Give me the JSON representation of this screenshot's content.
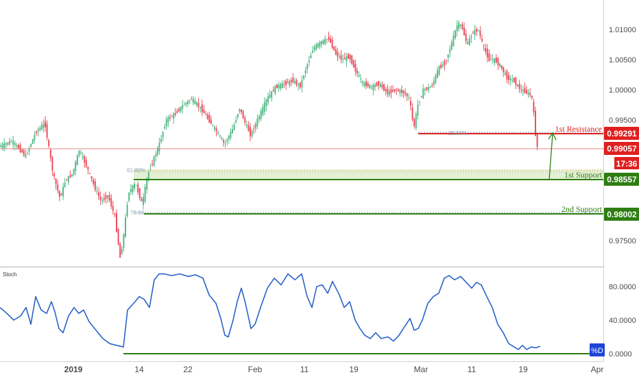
{
  "chart_data": [
    {
      "type": "candlestick",
      "ylim": [
        0.9715,
        1.0135
      ],
      "y_ticks": [
        "1.01000",
        "1.00500",
        "1.00000",
        "0.99500",
        "0.97500"
      ],
      "x_ticks": [
        "2019",
        "14",
        "22",
        "Feb",
        "11",
        "19",
        "Mar",
        "11",
        "19",
        "Apr"
      ],
      "price_path": [
        [
          0,
          0.9905
        ],
        [
          20,
          0.9915
        ],
        [
          40,
          0.989
        ],
        [
          55,
          0.993
        ],
        [
          68,
          0.9945
        ],
        [
          80,
          0.986
        ],
        [
          90,
          0.982
        ],
        [
          98,
          0.985
        ],
        [
          108,
          0.986
        ],
        [
          118,
          0.99
        ],
        [
          130,
          0.987
        ],
        [
          140,
          0.984
        ],
        [
          150,
          0.9815
        ],
        [
          160,
          0.9825
        ],
        [
          170,
          0.979
        ],
        [
          178,
          0.972
        ],
        [
          183,
          0.976
        ],
        [
          190,
          0.983
        ],
        [
          200,
          0.9845
        ],
        [
          210,
          0.981
        ],
        [
          218,
          0.986
        ],
        [
          225,
          0.988
        ],
        [
          235,
          0.991
        ],
        [
          245,
          0.995
        ],
        [
          258,
          0.996
        ],
        [
          270,
          0.9975
        ],
        [
          282,
          0.9985
        ],
        [
          295,
          0.997
        ],
        [
          310,
          0.9945
        ],
        [
          322,
          0.9925
        ],
        [
          330,
          0.991
        ],
        [
          342,
          0.9935
        ],
        [
          352,
          0.997
        ],
        [
          360,
          0.9945
        ],
        [
          368,
          0.9925
        ],
        [
          380,
          0.9955
        ],
        [
          392,
          0.9985
        ],
        [
          405,
          1.0005
        ],
        [
          418,
          1.001
        ],
        [
          430,
          1.0015
        ],
        [
          440,
          1.0005
        ],
        [
          450,
          1.004
        ],
        [
          460,
          1.007
        ],
        [
          472,
          1.008
        ],
        [
          482,
          1.0085
        ],
        [
          492,
          1.006
        ],
        [
          502,
          1.005
        ],
        [
          512,
          1.0055
        ],
        [
          522,
          1.003
        ],
        [
          532,
          1.001
        ],
        [
          545,
          1.0005
        ],
        [
          555,
          1.001
        ],
        [
          568,
          0.9995
        ],
        [
          580,
          1.0
        ],
        [
          592,
          0.9995
        ],
        [
          600,
          0.9985
        ],
        [
          606,
          0.9935
        ],
        [
          612,
          0.9975
        ],
        [
          620,
          1.0
        ],
        [
          632,
          1.0005
        ],
        [
          642,
          1.0035
        ],
        [
          652,
          1.0045
        ],
        [
          662,
          1.008
        ],
        [
          670,
          1.011
        ],
        [
          676,
          1.0105
        ],
        [
          684,
          1.0075
        ],
        [
          692,
          1.0095
        ],
        [
          700,
          1.01
        ],
        [
          708,
          1.007
        ],
        [
          716,
          1.005
        ],
        [
          724,
          1.005
        ],
        [
          732,
          1.004
        ],
        [
          742,
          1.002
        ],
        [
          752,
          1.0015
        ],
        [
          762,
          1.0
        ],
        [
          772,
          0.9995
        ],
        [
          778,
          0.999
        ],
        [
          782,
          0.995
        ],
        [
          785,
          0.9905
        ]
      ]
    },
    {
      "type": "line",
      "title": "Stoch",
      "ylim": [
        0,
        100
      ],
      "y_ticks": [
        "80.0000",
        "40.0000",
        "0.0000"
      ],
      "series": [
        {
          "name": "%D",
          "points": [
            [
              0,
              55
            ],
            [
              10,
              48
            ],
            [
              20,
              40
            ],
            [
              30,
              45
            ],
            [
              38,
              55
            ],
            [
              45,
              35
            ],
            [
              52,
              68
            ],
            [
              60,
              52
            ],
            [
              68,
              48
            ],
            [
              75,
              62
            ],
            [
              80,
              50
            ],
            [
              86,
              30
            ],
            [
              92,
              25
            ],
            [
              100,
              45
            ],
            [
              108,
              55
            ],
            [
              115,
              48
            ],
            [
              122,
              52
            ],
            [
              130,
              38
            ],
            [
              140,
              28
            ],
            [
              150,
              18
            ],
            [
              160,
              12
            ],
            [
              170,
              10
            ],
            [
              180,
              8
            ],
            [
              186,
              52
            ],
            [
              195,
              60
            ],
            [
              203,
              68
            ],
            [
              210,
              65
            ],
            [
              218,
              55
            ],
            [
              225,
              88
            ],
            [
              232,
              95
            ],
            [
              240,
              95
            ],
            [
              250,
              93
            ],
            [
              262,
              95
            ],
            [
              275,
              92
            ],
            [
              285,
              94
            ],
            [
              296,
              90
            ],
            [
              305,
              70
            ],
            [
              315,
              60
            ],
            [
              322,
              42
            ],
            [
              328,
              22
            ],
            [
              333,
              20
            ],
            [
              340,
              40
            ],
            [
              346,
              62
            ],
            [
              352,
              78
            ],
            [
              358,
              60
            ],
            [
              366,
              30
            ],
            [
              372,
              35
            ],
            [
              380,
              55
            ],
            [
              390,
              78
            ],
            [
              400,
              90
            ],
            [
              410,
              82
            ],
            [
              420,
              95
            ],
            [
              430,
              88
            ],
            [
              440,
              95
            ],
            [
              448,
              68
            ],
            [
              455,
              55
            ],
            [
              462,
              80
            ],
            [
              470,
              82
            ],
            [
              478,
              72
            ],
            [
              485,
              86
            ],
            [
              495,
              70
            ],
            [
              502,
              55
            ],
            [
              510,
              62
            ],
            [
              518,
              40
            ],
            [
              525,
              30
            ],
            [
              532,
              22
            ],
            [
              540,
              18
            ],
            [
              548,
              25
            ],
            [
              556,
              18
            ],
            [
              566,
              20
            ],
            [
              574,
              15
            ],
            [
              582,
              22
            ],
            [
              590,
              32
            ],
            [
              598,
              42
            ],
            [
              604,
              28
            ],
            [
              610,
              30
            ],
            [
              616,
              40
            ],
            [
              624,
              60
            ],
            [
              632,
              68
            ],
            [
              640,
              72
            ],
            [
              648,
              90
            ],
            [
              655,
              93
            ],
            [
              663,
              88
            ],
            [
              672,
              92
            ],
            [
              680,
              85
            ],
            [
              688,
              78
            ],
            [
              695,
              85
            ],
            [
              702,
              82
            ],
            [
              710,
              68
            ],
            [
              718,
              55
            ],
            [
              726,
              35
            ],
            [
              734,
              25
            ],
            [
              742,
              12
            ],
            [
              750,
              8
            ],
            [
              756,
              5
            ],
            [
              762,
              10
            ],
            [
              768,
              5
            ],
            [
              775,
              8
            ],
            [
              782,
              7
            ],
            [
              788,
              9
            ]
          ]
        }
      ]
    }
  ],
  "price_tags": {
    "resistance_price": "0.99291",
    "current_price": "0.99057",
    "countdown": "17:36",
    "support1_price": "0.98557",
    "support2_price": "0.98002",
    "stoch_value": "%D"
  },
  "level_labels": {
    "resistance": "1st Resistance",
    "support1": "1st Support",
    "support2": "2nd Support",
    "fib_236": "23.60%",
    "fib_618": "61.80%",
    "fib_786": "78.60"
  },
  "stoch_title": "Stoch",
  "colors": {
    "up": "#53b987",
    "down": "#eb4d5c",
    "resistance": "#e02020",
    "support": "#2e7d12",
    "zone": "#e3f0d4",
    "fib": "#e8c264",
    "stoch": "#2962c8",
    "stoch_tag": "#1f45d6",
    "current_line": "#e58585",
    "axis_bg": "#ffffff"
  }
}
